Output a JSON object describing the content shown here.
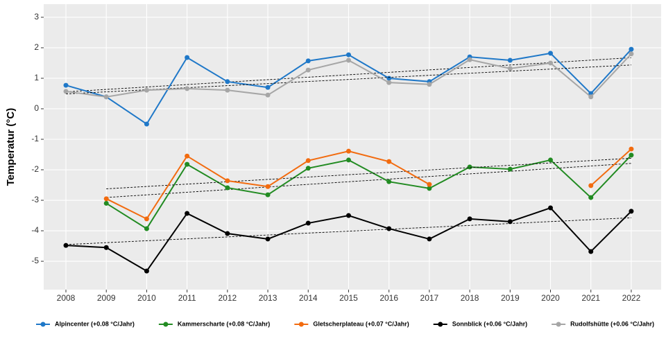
{
  "chart_data": {
    "type": "line",
    "y_label": "Temperatur (°C)",
    "x": [
      2008,
      2009,
      2010,
      2011,
      2012,
      2013,
      2014,
      2015,
      2016,
      2017,
      2018,
      2019,
      2020,
      2021,
      2022
    ],
    "xlim": [
      2007.45,
      2022.74
    ],
    "xticks": [
      2008,
      2009,
      2010,
      2011,
      2012,
      2013,
      2014,
      2015,
      2016,
      2017,
      2018,
      2019,
      2020,
      2021,
      2022
    ],
    "ylim": [
      -5.93,
      3.43
    ],
    "yticks": [
      -5,
      -4,
      -3,
      -2,
      -1,
      0,
      1,
      2,
      3
    ],
    "grid": true,
    "legend": "bottom",
    "trend_lines": true,
    "series": [
      {
        "name": "Alpincenter (+0.08 °C/Jahr)",
        "color": "#1f78c8",
        "values": [
          0.77,
          0.39,
          -0.5,
          1.68,
          0.89,
          0.7,
          1.57,
          1.77,
          1.0,
          0.89,
          1.7,
          1.59,
          1.82,
          0.5,
          1.95
        ]
      },
      {
        "name": "Kammerscharte (+0.08 °C/Jahr)",
        "color": "#228b22",
        "values": [
          null,
          -3.1,
          -3.93,
          -1.82,
          -2.59,
          -2.82,
          -1.95,
          -1.68,
          -2.39,
          -2.61,
          -1.91,
          -1.98,
          -1.68,
          -2.91,
          -1.52
        ]
      },
      {
        "name": "Gletscherplateau (+0.07 °C/Jahr)",
        "color": "#f26b0f",
        "values": [
          null,
          -2.95,
          -3.61,
          -1.55,
          -2.36,
          -2.55,
          -1.7,
          -1.39,
          -1.73,
          -2.48,
          null,
          null,
          null,
          -2.52,
          -1.32
        ]
      },
      {
        "name": "Sonnblick (+0.06 °C/Jahr)",
        "color": "#000000",
        "values": [
          -4.48,
          -4.55,
          -5.32,
          -3.43,
          -4.09,
          -4.27,
          -3.75,
          -3.5,
          -3.93,
          -4.27,
          -3.61,
          -3.7,
          -3.25,
          -4.68,
          -3.36
        ]
      },
      {
        "name": "Rudolfshütte (+0.06 °C/Jahr)",
        "color": "#a6a6a6",
        "values": [
          0.57,
          0.39,
          0.61,
          0.66,
          0.61,
          0.45,
          1.27,
          1.59,
          0.86,
          0.8,
          1.61,
          1.32,
          1.5,
          0.39,
          1.8
        ]
      }
    ]
  }
}
